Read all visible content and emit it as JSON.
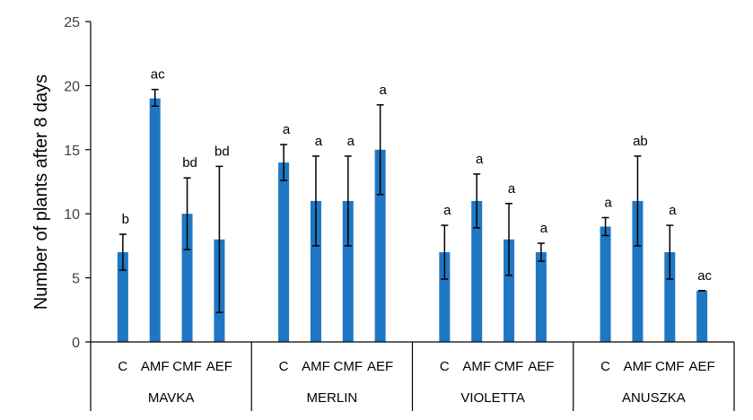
{
  "chart_data": {
    "type": "bar",
    "ylabel": "Number of plants after 8 days",
    "xlabel": "",
    "ylim": [
      0,
      25
    ],
    "yticks": [
      0,
      5,
      10,
      15,
      20,
      25
    ],
    "grid": false,
    "bar_color": "#1f77c4",
    "groups": [
      {
        "name": "MAVKA",
        "bars": [
          {
            "label": "C",
            "value": 7,
            "err_low": 5.6,
            "err_high": 8.4,
            "sig": "b"
          },
          {
            "label": "AMF",
            "value": 19,
            "err_low": 18.4,
            "err_high": 19.7,
            "sig": "ac"
          },
          {
            "label": "CMF",
            "value": 10,
            "err_low": 7.2,
            "err_high": 12.8,
            "sig": "bd"
          },
          {
            "label": "AEF",
            "value": 8,
            "err_low": 2.3,
            "err_high": 13.7,
            "sig": "bd"
          }
        ]
      },
      {
        "name": "MERLIN",
        "bars": [
          {
            "label": "C",
            "value": 14,
            "err_low": 12.6,
            "err_high": 15.4,
            "sig": "a"
          },
          {
            "label": "AMF",
            "value": 11,
            "err_low": 7.5,
            "err_high": 14.5,
            "sig": "a"
          },
          {
            "label": "CMF",
            "value": 11,
            "err_low": 7.5,
            "err_high": 14.5,
            "sig": "a"
          },
          {
            "label": "AEF",
            "value": 15,
            "err_low": 11.5,
            "err_high": 18.5,
            "sig": "a"
          }
        ]
      },
      {
        "name": "VIOLETTA",
        "bars": [
          {
            "label": "C",
            "value": 7,
            "err_low": 4.9,
            "err_high": 9.1,
            "sig": "a"
          },
          {
            "label": "AMF",
            "value": 11,
            "err_low": 8.9,
            "err_high": 13.1,
            "sig": "a"
          },
          {
            "label": "CMF",
            "value": 8,
            "err_low": 5.2,
            "err_high": 10.8,
            "sig": "a"
          },
          {
            "label": "AEF",
            "value": 7,
            "err_low": 6.3,
            "err_high": 7.7,
            "sig": "a"
          }
        ]
      },
      {
        "name": "ANUSZKA",
        "bars": [
          {
            "label": "C",
            "value": 9,
            "err_low": 8.3,
            "err_high": 9.7,
            "sig": "a"
          },
          {
            "label": "AMF",
            "value": 11,
            "err_low": 7.5,
            "err_high": 14.5,
            "sig": "ab"
          },
          {
            "label": "CMF",
            "value": 7,
            "err_low": 4.9,
            "err_high": 9.1,
            "sig": "a"
          },
          {
            "label": "AEF",
            "value": 4,
            "err_low": 4,
            "err_high": 4,
            "sig": "ac"
          }
        ]
      }
    ]
  }
}
